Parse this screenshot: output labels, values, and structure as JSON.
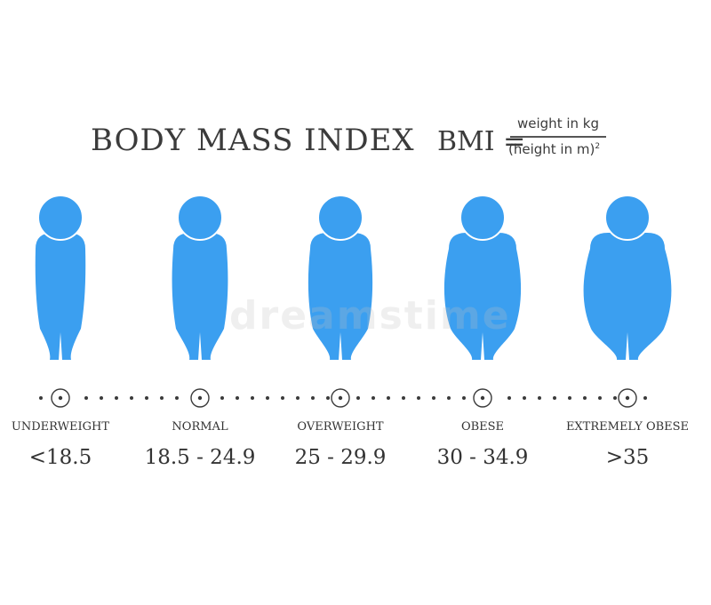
{
  "title": "BODY MASS INDEX",
  "formula": {
    "lhs": "BMI =",
    "numerator": "weight in kg",
    "denominator": "(height in m)",
    "exponent": "2"
  },
  "figure_color": "#3b9ff0",
  "watermark": "dreamstime",
  "categories": [
    {
      "label": "UNDERWEIGHT",
      "range": "<18.5"
    },
    {
      "label": "NORMAL",
      "range": "18.5 - 24.9"
    },
    {
      "label": "OVERWEIGHT",
      "range": "25 - 29.9"
    },
    {
      "label": "OBESE",
      "range": "30 - 34.9"
    },
    {
      "label": "EXTREMELY OBESE",
      "range": ">35"
    }
  ]
}
